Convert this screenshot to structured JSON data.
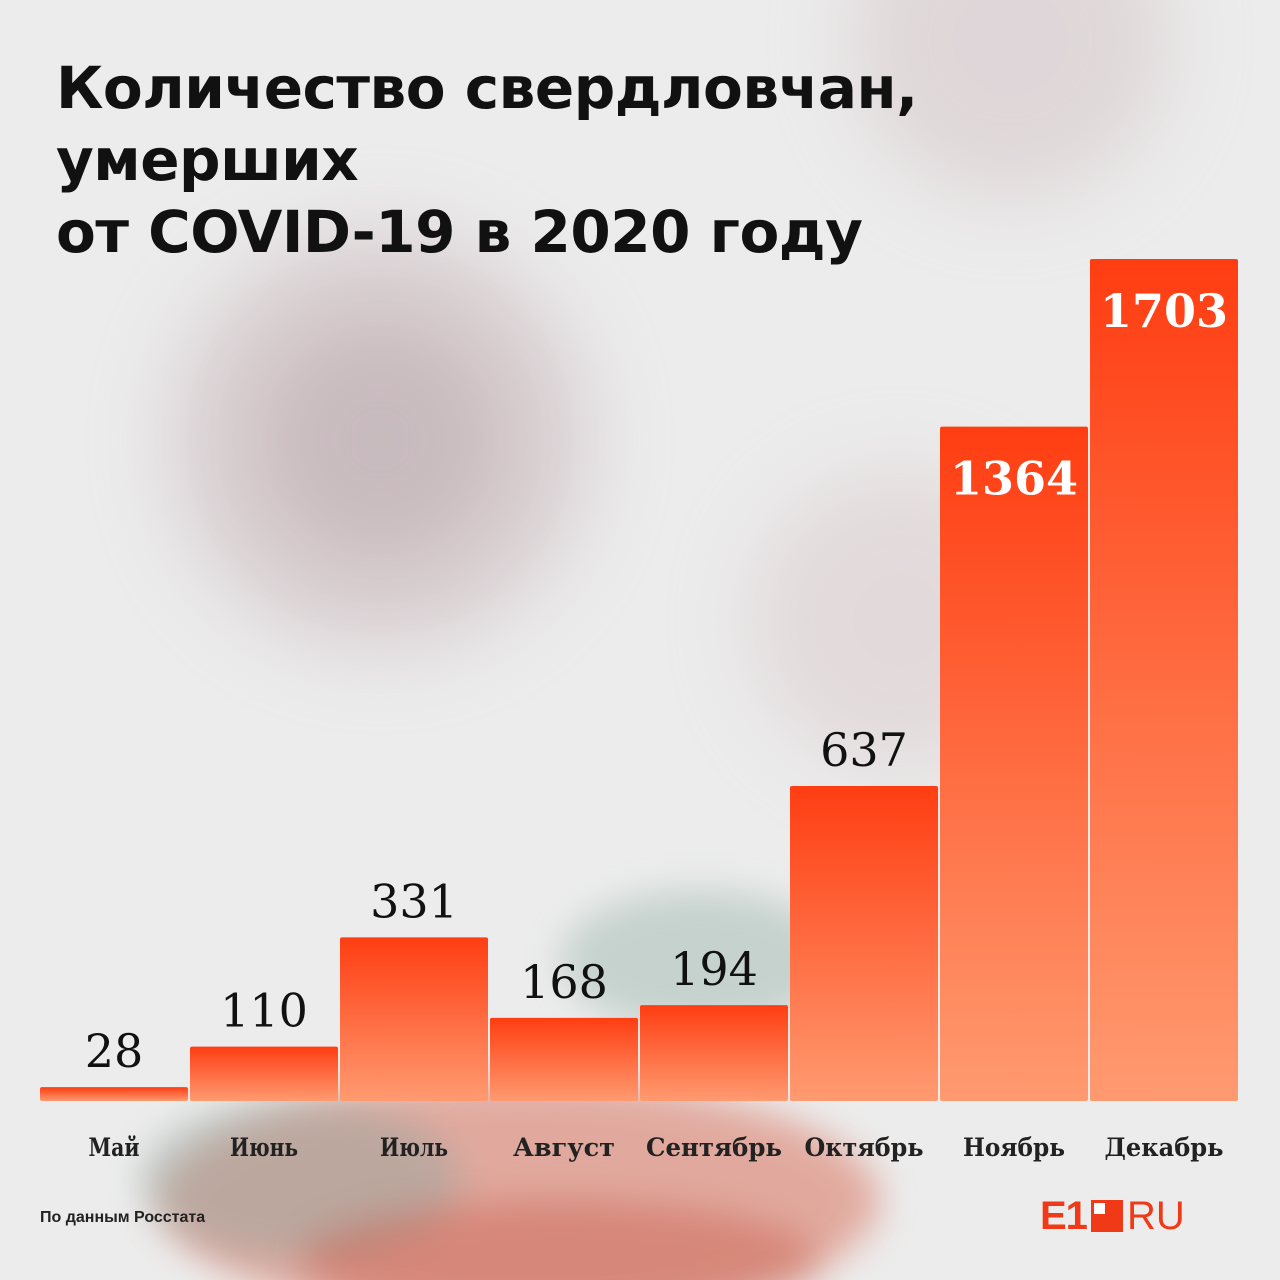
{
  "title_lines": [
    "Количество свердловчан, умерших",
    "от COVID-19 в 2020 году"
  ],
  "source": "По данным Росстата",
  "logo": {
    "e1": "E1",
    "ru": "RU"
  },
  "colors": {
    "bar_top": "#ff3d12",
    "bar_bottom": "#ff9a70",
    "title": "#111111",
    "label": "#111111",
    "inside_label": "#ffffff"
  },
  "chart_data": {
    "type": "bar",
    "title": "Количество свердловчан, умерших от COVID-19 в 2020 году",
    "categories": [
      "Май",
      "Июнь",
      "Июль",
      "Август",
      "Сентябрь",
      "Октябрь",
      "Ноябрь",
      "Декабрь"
    ],
    "values": [
      28,
      110,
      331,
      168,
      194,
      637,
      1364,
      1703
    ],
    "inside_label_min": 1000,
    "ylim": [
      0,
      1703
    ],
    "grid": false,
    "xlabel": "",
    "ylabel": ""
  }
}
